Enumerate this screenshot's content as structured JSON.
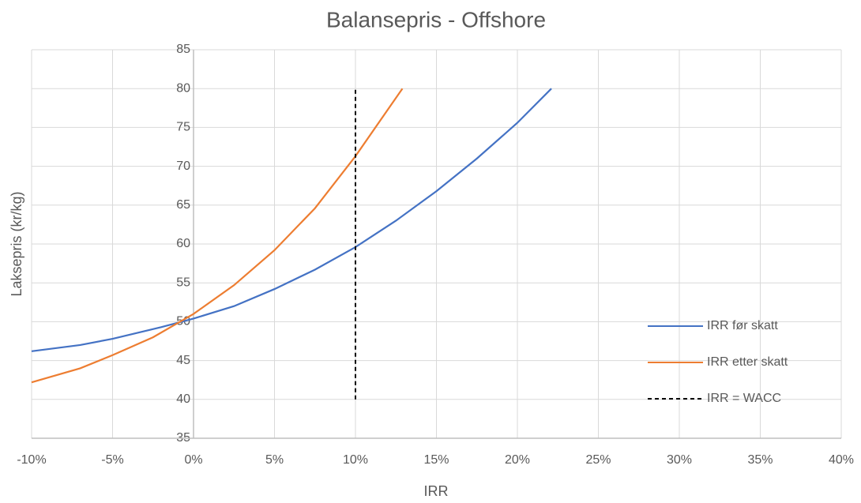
{
  "chart_data": {
    "type": "line",
    "title": "Balansepris - Offshore",
    "xlabel": "IRR",
    "ylabel": "Laksepris (kr/kg)",
    "xlim": [
      -10,
      40
    ],
    "xticks": [
      {
        "value": -10,
        "label": "-10%"
      },
      {
        "value": -5,
        "label": "-5%"
      },
      {
        "value": 0,
        "label": "0%"
      },
      {
        "value": 5,
        "label": "5%"
      },
      {
        "value": 10,
        "label": "10%"
      },
      {
        "value": 15,
        "label": "15%"
      },
      {
        "value": 20,
        "label": "20%"
      },
      {
        "value": 25,
        "label": "25%"
      },
      {
        "value": 30,
        "label": "30%"
      },
      {
        "value": 35,
        "label": "35%"
      },
      {
        "value": 40,
        "label": "40%"
      }
    ],
    "ylim": [
      35,
      85
    ],
    "yticks": [
      35,
      40,
      45,
      50,
      55,
      60,
      65,
      70,
      75,
      80,
      85
    ],
    "grid": true,
    "legend": "right",
    "series": [
      {
        "name": "IRR før skatt",
        "color": "#4472c4",
        "dash": "solid",
        "x": [
          -10,
          -7,
          -5,
          -2,
          0,
          2.5,
          5,
          7.5,
          10,
          12.5,
          15,
          17.5,
          20,
          22.1
        ],
        "values": [
          46.2,
          47,
          47.8,
          49.3,
          50.4,
          52,
          54.2,
          56.7,
          59.6,
          63,
          66.8,
          71,
          75.6,
          80
        ]
      },
      {
        "name": "IRR etter skatt",
        "color": "#ed7d31",
        "dash": "solid",
        "x": [
          -10,
          -7,
          -5,
          -2.5,
          0,
          2.5,
          5,
          7.5,
          10,
          12,
          12.9
        ],
        "values": [
          42.2,
          44,
          45.7,
          48,
          51,
          54.7,
          59.2,
          64.6,
          71.3,
          77.3,
          80
        ]
      },
      {
        "name": "IRR = WACC",
        "color": "#000000",
        "dash": "dashed",
        "x": [
          10,
          10
        ],
        "values": [
          40,
          80
        ]
      }
    ]
  }
}
